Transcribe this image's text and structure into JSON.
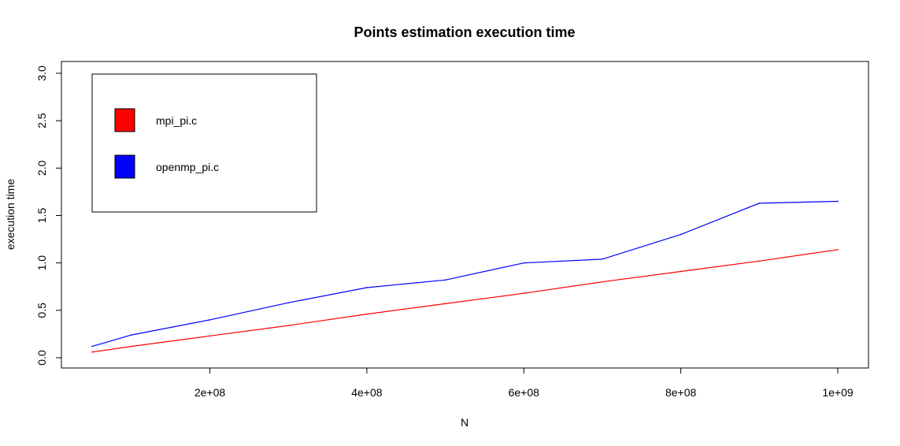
{
  "chart_data": {
    "type": "line",
    "title": "Points estimation execution time",
    "xlabel": "N",
    "ylabel": "execution time",
    "xlim": [
      50000000,
      1000000000
    ],
    "ylim": [
      0,
      3.0
    ],
    "x_ticks": [
      200000000,
      400000000,
      600000000,
      800000000,
      1000000000
    ],
    "x_tick_labels": [
      "2e+08",
      "4e+08",
      "6e+08",
      "8e+08",
      "1e+09"
    ],
    "y_ticks": [
      0,
      0.5,
      1.0,
      1.5,
      2.0,
      2.5,
      3.0
    ],
    "y_tick_labels": [
      "0.0",
      "0.5",
      "1.0",
      "1.5",
      "2.0",
      "2.5",
      "3.0"
    ],
    "grid": false,
    "legend_position": "top-left",
    "x": [
      50000000,
      100000000,
      200000000,
      300000000,
      400000000,
      500000000,
      600000000,
      700000000,
      800000000,
      900000000,
      1000000000
    ],
    "series": [
      {
        "name": "mpi_pi.c",
        "color": "#ff0000",
        "values": [
          0.06,
          0.12,
          0.23,
          0.34,
          0.46,
          0.57,
          0.68,
          0.8,
          0.91,
          1.02,
          1.14
        ]
      },
      {
        "name": "openmp_pi.c",
        "color": "#0000ff",
        "values": [
          0.12,
          0.24,
          0.4,
          0.58,
          0.74,
          0.82,
          1.0,
          1.04,
          1.3,
          1.63,
          1.65
        ]
      }
    ]
  }
}
